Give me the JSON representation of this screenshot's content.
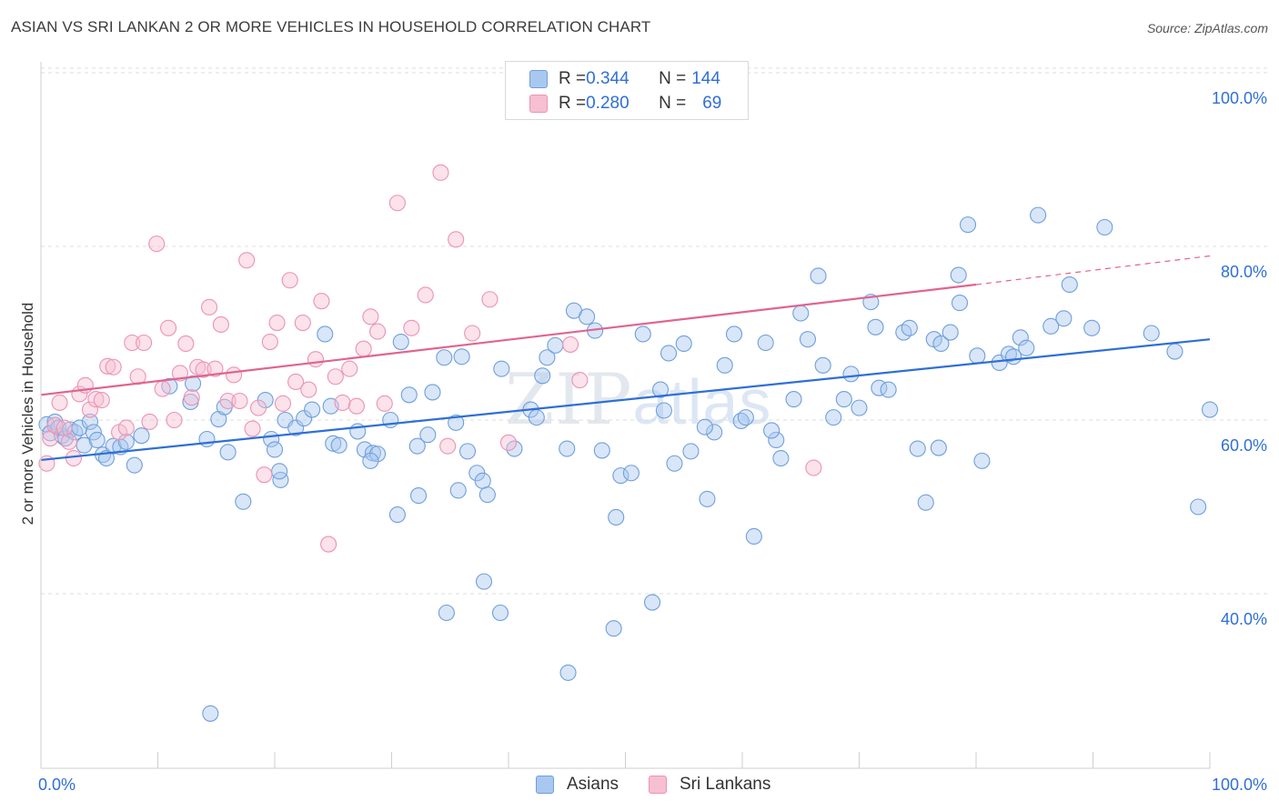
{
  "header": {
    "title": "ASIAN VS SRI LANKAN 2 OR MORE VEHICLES IN HOUSEHOLD CORRELATION CHART",
    "source": "Source: ZipAtlas.com"
  },
  "legend_stats": [
    {
      "r_label": "R = ",
      "r_value": "0.344",
      "n_label": "N = ",
      "n_value": "144"
    },
    {
      "r_label": "R = ",
      "r_value": "0.280",
      "n_label": "N = ",
      "n_value": "69"
    }
  ],
  "watermark": {
    "zip": "ZIP",
    "atlas": "atlas"
  },
  "colors": {
    "asians_fill": "#a9c8f0",
    "asians_stroke": "#6f9fdc",
    "asians_line": "#2f6fd6",
    "srilankans_fill": "#f7bfd2",
    "srilankans_stroke": "#ec93b3",
    "srilankans_line": "#e0648f",
    "grid": "#dcdcdc",
    "tick_label": "#2f6fd6"
  },
  "chart_data": {
    "type": "scatter",
    "title": "ASIAN VS SRI LANKAN 2 OR MORE VEHICLES IN HOUSEHOLD CORRELATION CHART",
    "xlabel": "",
    "ylabel": "2 or more Vehicles in Household",
    "xlim": [
      0,
      100
    ],
    "ylim": [
      20,
      102
    ],
    "x_tick_labels": [
      "0.0%",
      "100.0%"
    ],
    "y_ticks": [
      40,
      60,
      80,
      100
    ],
    "y_tick_labels": [
      "40.0%",
      "60.0%",
      "80.0%",
      "100.0%"
    ],
    "grid": true,
    "legend_placement": "top-center and bottom",
    "series": [
      {
        "name": "Asians",
        "trend": {
          "x": [
            0,
            100
          ],
          "y": [
            55.4,
            69.3
          ]
        },
        "points": [
          [
            0.5,
            59.5
          ],
          [
            0.8,
            58.5
          ],
          [
            1.2,
            59.8
          ],
          [
            1.5,
            59.1
          ],
          [
            1.8,
            58.2
          ],
          [
            2.1,
            57.9
          ],
          [
            2.5,
            58.9
          ],
          [
            2.9,
            58.6
          ],
          [
            3.3,
            59.1
          ],
          [
            3.7,
            57.1
          ],
          [
            4.2,
            59.8
          ],
          [
            4.5,
            58.6
          ],
          [
            4.8,
            57.7
          ],
          [
            5.3,
            56.0
          ],
          [
            5.6,
            55.6
          ],
          [
            6.2,
            57.0
          ],
          [
            6.8,
            56.9
          ],
          [
            7.3,
            57.5
          ],
          [
            8.0,
            54.8
          ],
          [
            8.6,
            58.2
          ],
          [
            11.0,
            63.9
          ],
          [
            12.8,
            62.1
          ],
          [
            14.2,
            57.8
          ],
          [
            15.2,
            60.1
          ],
          [
            15.7,
            61.5
          ],
          [
            16.0,
            56.3
          ],
          [
            17.3,
            50.6
          ],
          [
            19.2,
            62.3
          ],
          [
            19.7,
            57.8
          ],
          [
            20.0,
            56.6
          ],
          [
            20.5,
            53.1
          ],
          [
            20.9,
            60.0
          ],
          [
            21.8,
            59.1
          ],
          [
            22.5,
            60.2
          ],
          [
            23.2,
            61.2
          ],
          [
            24.3,
            69.9
          ],
          [
            25.0,
            57.3
          ],
          [
            25.5,
            57.1
          ],
          [
            27.1,
            58.7
          ],
          [
            27.7,
            56.6
          ],
          [
            28.4,
            56.2
          ],
          [
            28.8,
            56.1
          ],
          [
            29.9,
            60.0
          ],
          [
            30.8,
            69.0
          ],
          [
            31.5,
            62.9
          ],
          [
            32.3,
            51.3
          ],
          [
            33.1,
            58.3
          ],
          [
            33.5,
            63.2
          ],
          [
            34.5,
            67.2
          ],
          [
            35.5,
            59.7
          ],
          [
            36.0,
            67.3
          ],
          [
            36.5,
            56.4
          ],
          [
            37.3,
            53.9
          ],
          [
            37.8,
            53.0
          ],
          [
            38.2,
            51.4
          ],
          [
            39.4,
            65.9
          ],
          [
            40.5,
            56.7
          ],
          [
            41.9,
            61.2
          ],
          [
            42.9,
            65.1
          ],
          [
            43.3,
            67.2
          ],
          [
            44.0,
            68.6
          ],
          [
            45.0,
            56.7
          ],
          [
            45.6,
            72.6
          ],
          [
            46.7,
            71.9
          ],
          [
            47.4,
            70.3
          ],
          [
            48.0,
            56.5
          ],
          [
            49.2,
            48.8
          ],
          [
            49.6,
            53.6
          ],
          [
            50.5,
            53.9
          ],
          [
            51.5,
            69.9
          ],
          [
            53.0,
            63.5
          ],
          [
            53.7,
            67.7
          ],
          [
            54.2,
            55.0
          ],
          [
            55.0,
            68.8
          ],
          [
            55.6,
            56.4
          ],
          [
            57.0,
            50.9
          ],
          [
            57.6,
            58.6
          ],
          [
            58.5,
            66.3
          ],
          [
            59.3,
            69.9
          ],
          [
            59.9,
            59.9
          ],
          [
            60.3,
            60.3
          ],
          [
            61.0,
            46.6
          ],
          [
            62.0,
            68.9
          ],
          [
            62.9,
            57.7
          ],
          [
            63.3,
            55.6
          ],
          [
            64.4,
            62.4
          ],
          [
            65.0,
            72.3
          ],
          [
            65.6,
            69.3
          ],
          [
            66.5,
            76.6
          ],
          [
            66.9,
            66.3
          ],
          [
            67.8,
            60.3
          ],
          [
            68.7,
            62.4
          ],
          [
            69.3,
            65.3
          ],
          [
            70.0,
            61.4
          ],
          [
            71.0,
            73.6
          ],
          [
            71.4,
            70.7
          ],
          [
            71.7,
            63.7
          ],
          [
            72.5,
            63.5
          ],
          [
            73.8,
            70.1
          ],
          [
            74.3,
            70.6
          ],
          [
            75.0,
            56.7
          ],
          [
            75.7,
            50.5
          ],
          [
            76.4,
            69.3
          ],
          [
            77.0,
            68.8
          ],
          [
            77.8,
            70.1
          ],
          [
            78.5,
            76.7
          ],
          [
            78.6,
            73.5
          ],
          [
            79.3,
            82.5
          ],
          [
            80.5,
            55.3
          ],
          [
            82.0,
            66.6
          ],
          [
            82.8,
            67.6
          ],
          [
            83.2,
            67.3
          ],
          [
            83.8,
            69.5
          ],
          [
            84.3,
            68.3
          ],
          [
            85.3,
            83.6
          ],
          [
            86.4,
            70.8
          ],
          [
            87.5,
            71.7
          ],
          [
            88.0,
            75.6
          ],
          [
            89.9,
            70.6
          ],
          [
            91.0,
            82.2
          ],
          [
            95.0,
            70.0
          ],
          [
            97.0,
            67.9
          ],
          [
            99.0,
            50.0
          ],
          [
            100.0,
            61.2
          ],
          [
            14.5,
            26.2
          ],
          [
            13.0,
            64.2
          ],
          [
            24.8,
            61.6
          ],
          [
            30.5,
            49.1
          ],
          [
            34.7,
            37.8
          ],
          [
            35.7,
            51.9
          ],
          [
            37.9,
            41.4
          ],
          [
            39.3,
            37.8
          ],
          [
            45.1,
            30.9
          ],
          [
            49.0,
            36.0
          ],
          [
            52.3,
            39.0
          ],
          [
            56.8,
            59.2
          ],
          [
            62.5,
            58.8
          ],
          [
            76.8,
            56.8
          ],
          [
            80.1,
            67.4
          ],
          [
            53.3,
            61.1
          ],
          [
            42.4,
            60.3
          ],
          [
            32.2,
            57.0
          ],
          [
            28.2,
            55.3
          ],
          [
            20.4,
            54.1
          ]
        ]
      },
      {
        "name": "Sri Lankans",
        "trend": {
          "x": [
            0,
            80
          ],
          "y": [
            62.9,
            75.6
          ],
          "dashed_to": [
            100,
            78.9
          ]
        },
        "points": [
          [
            0.5,
            55.0
          ],
          [
            0.8,
            57.9
          ],
          [
            1.2,
            59.4
          ],
          [
            1.6,
            62.0
          ],
          [
            2.0,
            59.1
          ],
          [
            2.4,
            57.5
          ],
          [
            2.8,
            55.6
          ],
          [
            3.3,
            63.0
          ],
          [
            3.8,
            64.0
          ],
          [
            4.2,
            61.2
          ],
          [
            4.7,
            62.4
          ],
          [
            5.2,
            62.3
          ],
          [
            5.7,
            66.2
          ],
          [
            6.2,
            66.1
          ],
          [
            6.7,
            58.6
          ],
          [
            7.3,
            59.1
          ],
          [
            7.8,
            68.9
          ],
          [
            8.3,
            65.0
          ],
          [
            8.8,
            68.9
          ],
          [
            9.3,
            59.8
          ],
          [
            9.9,
            80.3
          ],
          [
            10.4,
            63.6
          ],
          [
            10.9,
            70.6
          ],
          [
            11.4,
            60.0
          ],
          [
            11.9,
            65.4
          ],
          [
            12.4,
            68.8
          ],
          [
            12.9,
            62.6
          ],
          [
            13.4,
            66.1
          ],
          [
            13.9,
            65.8
          ],
          [
            14.4,
            73.0
          ],
          [
            14.9,
            65.9
          ],
          [
            15.4,
            71.0
          ],
          [
            16.0,
            62.2
          ],
          [
            16.5,
            65.2
          ],
          [
            17.0,
            62.2
          ],
          [
            17.6,
            78.4
          ],
          [
            18.1,
            59.0
          ],
          [
            18.6,
            61.4
          ],
          [
            19.1,
            53.7
          ],
          [
            19.6,
            69.0
          ],
          [
            20.2,
            71.2
          ],
          [
            20.7,
            61.9
          ],
          [
            21.3,
            76.1
          ],
          [
            21.8,
            64.4
          ],
          [
            22.4,
            71.2
          ],
          [
            22.9,
            63.5
          ],
          [
            23.5,
            67.0
          ],
          [
            24.0,
            73.7
          ],
          [
            24.6,
            45.7
          ],
          [
            25.2,
            65.0
          ],
          [
            25.8,
            62.0
          ],
          [
            26.4,
            65.9
          ],
          [
            27.0,
            61.6
          ],
          [
            27.6,
            68.2
          ],
          [
            28.2,
            71.9
          ],
          [
            28.8,
            70.2
          ],
          [
            29.4,
            61.9
          ],
          [
            30.5,
            85.0
          ],
          [
            31.7,
            70.6
          ],
          [
            32.9,
            74.4
          ],
          [
            34.2,
            88.5
          ],
          [
            35.5,
            80.8
          ],
          [
            36.9,
            70.0
          ],
          [
            38.4,
            73.9
          ],
          [
            40.0,
            57.4
          ],
          [
            45.3,
            68.7
          ],
          [
            46.1,
            64.6
          ],
          [
            66.1,
            54.5
          ],
          [
            34.8,
            57.0
          ]
        ]
      }
    ]
  }
}
